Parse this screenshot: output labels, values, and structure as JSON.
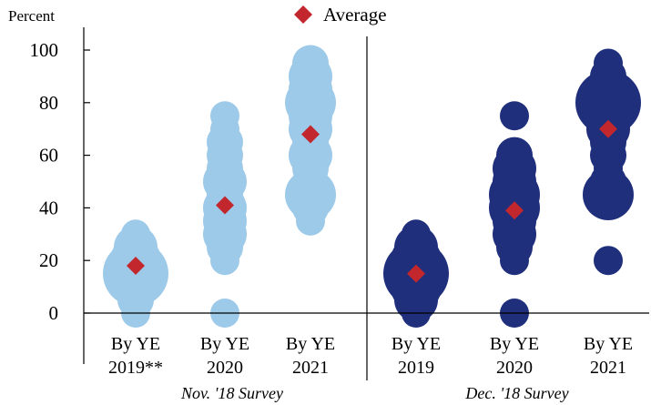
{
  "chart_data": {
    "type": "scatter",
    "y_unit_label": "Percent",
    "ylim": [
      0,
      100
    ],
    "yticks": [
      0,
      20,
      40,
      60,
      80,
      100
    ],
    "grid": false,
    "legend": {
      "label": "Average",
      "marker": "diamond",
      "color": "#c1272d",
      "placement": "top-center"
    },
    "groups": [
      {
        "label": "Nov. '18 Survey",
        "color": "#9ecae9",
        "categories": [
          "By YE 2019**",
          "By YE 2020",
          "By YE 2021"
        ]
      },
      {
        "label": "Dec. '18 Survey",
        "color": "#1f2f7c",
        "categories": [
          "By YE 2019",
          "By YE 2020",
          "By YE 2021"
        ]
      }
    ],
    "category_lines": [
      [
        "By YE",
        "2019**"
      ],
      [
        "By YE",
        "2020"
      ],
      [
        "By YE",
        "2021"
      ],
      [
        "By YE",
        "2019"
      ],
      [
        "By YE",
        "2020"
      ],
      [
        "By YE",
        "2021"
      ]
    ],
    "series": [
      {
        "name": "Nov. '18 Survey, By YE 2019**",
        "group": 0,
        "average": 18,
        "points": [
          {
            "y": 0,
            "w": 1
          },
          {
            "y": 5,
            "w": 2
          },
          {
            "y": 10,
            "w": 3
          },
          {
            "y": 15,
            "w": 6
          },
          {
            "y": 20,
            "w": 4
          },
          {
            "y": 25,
            "w": 3
          },
          {
            "y": 30,
            "w": 1
          }
        ]
      },
      {
        "name": "Nov. '18 Survey, By YE 2020",
        "group": 0,
        "average": 41,
        "points": [
          {
            "y": 0,
            "w": 1
          },
          {
            "y": 20,
            "w": 1
          },
          {
            "y": 25,
            "w": 2
          },
          {
            "y": 30,
            "w": 3
          },
          {
            "y": 35,
            "w": 3
          },
          {
            "y": 40,
            "w": 3
          },
          {
            "y": 45,
            "w": 2
          },
          {
            "y": 50,
            "w": 3
          },
          {
            "y": 55,
            "w": 2
          },
          {
            "y": 60,
            "w": 2
          },
          {
            "y": 65,
            "w": 2
          },
          {
            "y": 70,
            "w": 1
          },
          {
            "y": 75,
            "w": 1
          }
        ]
      },
      {
        "name": "Nov. '18 Survey, By YE 2021",
        "group": 0,
        "average": 68,
        "points": [
          {
            "y": 35,
            "w": 1
          },
          {
            "y": 40,
            "w": 2
          },
          {
            "y": 45,
            "w": 4
          },
          {
            "y": 50,
            "w": 2
          },
          {
            "y": 55,
            "w": 2
          },
          {
            "y": 60,
            "w": 3
          },
          {
            "y": 65,
            "w": 2
          },
          {
            "y": 70,
            "w": 3
          },
          {
            "y": 75,
            "w": 3
          },
          {
            "y": 80,
            "w": 4
          },
          {
            "y": 85,
            "w": 3
          },
          {
            "y": 90,
            "w": 3
          },
          {
            "y": 95,
            "w": 2
          }
        ]
      },
      {
        "name": "Dec. '18 Survey, By YE 2019",
        "group": 1,
        "average": 15,
        "points": [
          {
            "y": 0,
            "w": 1
          },
          {
            "y": 5,
            "w": 3
          },
          {
            "y": 10,
            "w": 4
          },
          {
            "y": 15,
            "w": 6
          },
          {
            "y": 20,
            "w": 4
          },
          {
            "y": 25,
            "w": 3
          },
          {
            "y": 30,
            "w": 1
          }
        ]
      },
      {
        "name": "Dec. '18 Survey, By YE 2020",
        "group": 1,
        "average": 39,
        "points": [
          {
            "y": 0,
            "w": 1
          },
          {
            "y": 20,
            "w": 1
          },
          {
            "y": 25,
            "w": 2
          },
          {
            "y": 30,
            "w": 3
          },
          {
            "y": 35,
            "w": 3
          },
          {
            "y": 40,
            "w": 4
          },
          {
            "y": 45,
            "w": 4
          },
          {
            "y": 50,
            "w": 3
          },
          {
            "y": 55,
            "w": 3
          },
          {
            "y": 60,
            "w": 2
          },
          {
            "y": 75,
            "w": 1
          }
        ]
      },
      {
        "name": "Dec. '18 Survey, By YE 2021",
        "group": 1,
        "average": 70,
        "points": [
          {
            "y": 20,
            "w": 1
          },
          {
            "y": 45,
            "w": 4
          },
          {
            "y": 50,
            "w": 2
          },
          {
            "y": 55,
            "w": 1
          },
          {
            "y": 60,
            "w": 2
          },
          {
            "y": 65,
            "w": 2
          },
          {
            "y": 70,
            "w": 3
          },
          {
            "y": 75,
            "w": 3
          },
          {
            "y": 80,
            "w": 6
          },
          {
            "y": 85,
            "w": 3
          },
          {
            "y": 90,
            "w": 2
          },
          {
            "y": 95,
            "w": 1
          }
        ]
      }
    ]
  }
}
